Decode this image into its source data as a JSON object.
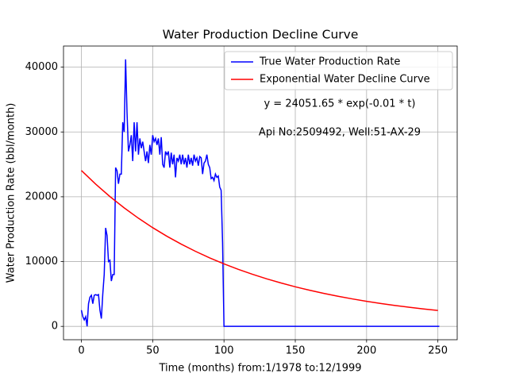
{
  "chart_data": {
    "type": "line",
    "title": "Water Production Decline Curve",
    "xlabel": "Time (months) from:1/1978 to:12/1999",
    "ylabel": "Water Production Rate (bbl/month)",
    "annotations": [
      "y = 24051.65 * exp(-0.01 * t)",
      "Api No:2509492, Well:51-AX-29"
    ],
    "xlim": [
      -12.55,
      263.55
    ],
    "ylim": [
      -2060,
      43260
    ],
    "xticks": [
      0,
      50,
      100,
      150,
      200,
      250
    ],
    "yticks": [
      0,
      10000,
      20000,
      30000,
      40000
    ],
    "grid": true,
    "legend": "upper right",
    "series": [
      {
        "name": "True Water Production Rate",
        "color": "#0000ff",
        "x": [
          0,
          1,
          2,
          3,
          4,
          5,
          6,
          7,
          8,
          9,
          10,
          11,
          12,
          13,
          14,
          15,
          16,
          17,
          18,
          19,
          20,
          21,
          22,
          23,
          24,
          25,
          26,
          27,
          28,
          29,
          30,
          31,
          32,
          33,
          34,
          35,
          36,
          37,
          38,
          39,
          40,
          41,
          42,
          43,
          44,
          45,
          46,
          47,
          48,
          49,
          50,
          51,
          52,
          53,
          54,
          55,
          56,
          57,
          58,
          59,
          60,
          61,
          62,
          63,
          64,
          65,
          66,
          67,
          68,
          69,
          70,
          71,
          72,
          73,
          74,
          75,
          76,
          77,
          78,
          79,
          80,
          81,
          82,
          83,
          84,
          85,
          86,
          87,
          88,
          89,
          90,
          91,
          92,
          93,
          94,
          95,
          96,
          97,
          98,
          99,
          100,
          101,
          251
        ],
        "values": [
          2500,
          1500,
          1000,
          1500,
          0,
          3500,
          4500,
          4800,
          3500,
          4800,
          4900,
          4800,
          4900,
          2500,
          1200,
          5000,
          8000,
          15200,
          14000,
          10000,
          10200,
          7000,
          8000,
          8000,
          24500,
          24000,
          22000,
          23500,
          23500,
          31500,
          30000,
          41200,
          33000,
          27000,
          28000,
          29500,
          25500,
          31500,
          27000,
          31500,
          26500,
          29000,
          27500,
          28500,
          27000,
          25500,
          27000,
          25200,
          28000,
          26500,
          29500,
          28500,
          29000,
          28000,
          29000,
          26500,
          29200,
          25000,
          24500,
          27000,
          26500,
          27000,
          24500,
          26800,
          25000,
          26500,
          23000,
          26000,
          25500,
          26500,
          25000,
          26500,
          25000,
          26000,
          24500,
          26500,
          25000,
          26000,
          24800,
          26500,
          25500,
          26000,
          24800,
          26200,
          26000,
          23500,
          25200,
          25500,
          26500,
          25000,
          24500,
          22800,
          23000,
          22500,
          23500,
          23000,
          23200,
          21500,
          21000,
          13000,
          0,
          0,
          0
        ]
      },
      {
        "name": "Exponential Water Decline Curve",
        "color": "#ff0000",
        "x": [
          0,
          10,
          20,
          30,
          40,
          50,
          60,
          70,
          80,
          90,
          100,
          110,
          120,
          130,
          140,
          150,
          160,
          170,
          180,
          190,
          200,
          210,
          220,
          230,
          240,
          250
        ],
        "values": [
          24052,
          21952,
          20035,
          18286,
          16690,
          15233,
          13903,
          12689,
          11581,
          10570,
          9647,
          8805,
          8036,
          7335,
          6694,
          6110,
          5576,
          5090,
          4645,
          4240,
          3870,
          3532,
          3224,
          2942,
          2685,
          2451
        ]
      }
    ]
  }
}
